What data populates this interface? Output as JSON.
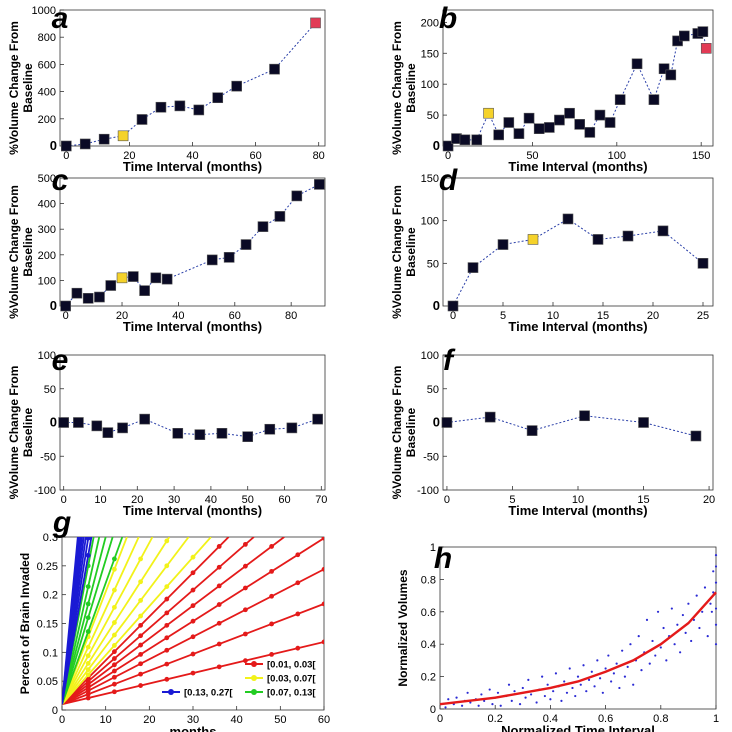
{
  "chart_data": [
    {
      "panel": "a",
      "type": "scatter",
      "xlabel": "Time Interval (months)",
      "ylabel": "%Volume Change From Baseline",
      "xlim": [
        -2,
        82
      ],
      "ylim": [
        0,
        1000
      ],
      "xticks": [
        0,
        20,
        40,
        60,
        80
      ],
      "yticks": [
        200,
        400,
        600,
        800,
        1000
      ],
      "zero_tick": "0",
      "x": [
        0,
        6,
        12,
        18,
        24,
        30,
        36,
        42,
        48,
        54,
        66,
        79
      ],
      "y": [
        0,
        15,
        50,
        75,
        195,
        285,
        295,
        265,
        355,
        440,
        565,
        905
      ],
      "highlights": {
        "3": "yellow",
        "11": "red"
      }
    },
    {
      "panel": "b",
      "type": "scatter",
      "xlabel": "Time Interval (months)",
      "ylabel": "%Volume Change From Baseline",
      "xlim": [
        -3,
        157
      ],
      "ylim": [
        0,
        220
      ],
      "xticks": [
        0,
        50,
        100,
        150
      ],
      "yticks": [
        50,
        100,
        150,
        200
      ],
      "zero_tick": "0",
      "x": [
        0,
        5,
        10,
        17,
        24,
        30,
        36,
        42,
        48,
        54,
        60,
        66,
        72,
        78,
        84,
        90,
        96,
        102,
        112,
        122,
        128,
        132,
        136,
        140,
        148,
        151,
        153
      ],
      "y": [
        0,
        12,
        10,
        10,
        53,
        18,
        38,
        20,
        45,
        28,
        30,
        42,
        53,
        35,
        22,
        50,
        38,
        75,
        133,
        75,
        125,
        115,
        170,
        178,
        182,
        185,
        158
      ],
      "highlights": {
        "4": "yellow",
        "26": "red"
      }
    },
    {
      "panel": "c",
      "type": "scatter",
      "xlabel": "Time Interval (months)",
      "ylabel": "%Volume Change From Baseline",
      "xlim": [
        -2,
        92
      ],
      "ylim": [
        0,
        500
      ],
      "xticks": [
        0,
        20,
        40,
        60,
        80
      ],
      "yticks": [
        100,
        200,
        300,
        400,
        500
      ],
      "zero_tick": "0",
      "x": [
        0,
        4,
        8,
        12,
        16,
        20,
        24,
        28,
        32,
        36,
        52,
        58,
        64,
        70,
        76,
        82,
        90
      ],
      "y": [
        0,
        50,
        30,
        35,
        80,
        110,
        115,
        60,
        110,
        105,
        180,
        190,
        240,
        310,
        350,
        430,
        475
      ],
      "highlights": {
        "5": "yellow"
      }
    },
    {
      "panel": "d",
      "type": "scatter",
      "xlabel": "Time Interval (months)",
      "ylabel": "%Volume Change From Baseline",
      "xlim": [
        -1,
        26
      ],
      "ylim": [
        0,
        150
      ],
      "xticks": [
        0,
        5,
        10,
        15,
        20,
        25
      ],
      "yticks": [
        50,
        100,
        150
      ],
      "zero_tick": "0",
      "x": [
        0,
        2,
        5,
        8,
        11.5,
        14.5,
        17.5,
        21,
        25
      ],
      "y": [
        0,
        45,
        72,
        78,
        102,
        78,
        82,
        88,
        50
      ],
      "highlights": {
        "3": "yellow"
      }
    },
    {
      "panel": "e",
      "type": "scatter",
      "xlabel": "Time Interval (months)",
      "ylabel": "%Volume Change From Baseline",
      "xlim": [
        -1,
        71
      ],
      "ylim": [
        -100,
        100
      ],
      "xticks": [
        0,
        10,
        20,
        30,
        40,
        50,
        60,
        70
      ],
      "yticks": [
        -100,
        -50,
        50,
        100
      ],
      "zero_tick": "0",
      "x": [
        0,
        4,
        9,
        12,
        16,
        22,
        31,
        37,
        43,
        50,
        56,
        62,
        69
      ],
      "y": [
        0,
        0,
        -5,
        -15,
        -8,
        5,
        -16,
        -18,
        -16,
        -21,
        -10,
        -8,
        5
      ],
      "highlights": {}
    },
    {
      "panel": "f",
      "type": "scatter",
      "xlabel": "Time Interval (months)",
      "ylabel": "%Volume Change From Baseline",
      "xlim": [
        -0.3,
        20.3
      ],
      "ylim": [
        -100,
        100
      ],
      "xticks": [
        0,
        5,
        10,
        15,
        20
      ],
      "yticks": [
        -100,
        -50,
        50,
        100
      ],
      "zero_tick": "0",
      "x": [
        0,
        3.3,
        6.5,
        10.5,
        15,
        19
      ],
      "y": [
        0,
        8,
        -12,
        10,
        0,
        -20
      ],
      "highlights": {}
    },
    {
      "panel": "g",
      "type": "line",
      "xlabel": "months",
      "ylabel": "Percent of Brain Invaded",
      "xlim": [
        0,
        60
      ],
      "ylim": [
        0,
        0.3
      ],
      "xticks": [
        0,
        10,
        20,
        30,
        40,
        50,
        60
      ],
      "yticks": [
        0,
        0.05,
        0.1,
        0.15,
        0.2,
        0.25,
        0.3
      ],
      "ytick_labels": [
        "0",
        "0.05",
        "0.1",
        "0.15",
        "0.2",
        "0.25",
        "0.3"
      ],
      "legend": [
        "[0.01, 0.03[",
        "[0.03, 0.07[",
        "[0.07, 0.13[",
        "[0.13, 0.27["
      ],
      "legend_position": "bottom-right",
      "series": [
        {
          "name": "[0.01, 0.03[",
          "color": "#e41a1a",
          "slopes": [
            0.0018,
            0.0029,
            0.0039,
            0.0048,
            0.0057,
            0.0066,
            0.0076
          ]
        },
        {
          "name": "[0.03, 0.07[",
          "color": "#f2f21a",
          "slopes": [
            0.0085,
            0.01,
            0.0118,
            0.014,
            0.0165,
            0.0195
          ]
        },
        {
          "name": "[0.07, 0.13[",
          "color": "#22cc22",
          "slopes": [
            0.021,
            0.025,
            0.029,
            0.034,
            0.04
          ]
        },
        {
          "name": "[0.13, 0.27[",
          "color": "#1a1ad4",
          "slopes": [
            0.043,
            0.048,
            0.053,
            0.058,
            0.063,
            0.068,
            0.074,
            0.08
          ]
        }
      ]
    },
    {
      "panel": "h",
      "type": "scatter",
      "xlabel": "Normalized Time Interval",
      "ylabel": "Normalized Volumes",
      "xlim": [
        0,
        1
      ],
      "ylim": [
        0,
        1
      ],
      "xticks": [
        0,
        0.2,
        0.4,
        0.6,
        0.8,
        1
      ],
      "yticks": [
        0,
        0.2,
        0.4,
        0.6,
        0.8,
        1
      ],
      "xtick_labels": [
        "0",
        "0.2",
        "0.4",
        "0.6",
        "0.8",
        "1"
      ],
      "ytick_labels": [
        "0",
        "0.2",
        "0.4",
        "0.6",
        "0.8",
        "1"
      ],
      "fit": {
        "color": "#e41a1a",
        "x": [
          0,
          0.1,
          0.2,
          0.3,
          0.4,
          0.5,
          0.6,
          0.7,
          0.8,
          0.9,
          1
        ],
        "y": [
          0.03,
          0.05,
          0.07,
          0.1,
          0.13,
          0.17,
          0.23,
          0.3,
          0.4,
          0.53,
          0.72
        ]
      },
      "point_color": "#2a2ad4",
      "points": [
        [
          0.02,
          0.01
        ],
        [
          0.03,
          0.06
        ],
        [
          0.05,
          0.03
        ],
        [
          0.06,
          0.07
        ],
        [
          0.08,
          0.02
        ],
        [
          0.09,
          0.05
        ],
        [
          0.1,
          0.1
        ],
        [
          0.11,
          0.04
        ],
        [
          0.13,
          0.06
        ],
        [
          0.14,
          0.02
        ],
        [
          0.15,
          0.09
        ],
        [
          0.16,
          0.05
        ],
        [
          0.18,
          0.12
        ],
        [
          0.19,
          0.03
        ],
        [
          0.2,
          0.07
        ],
        [
          0.21,
          0.1
        ],
        [
          0.22,
          0.02
        ],
        [
          0.24,
          0.08
        ],
        [
          0.25,
          0.15
        ],
        [
          0.26,
          0.05
        ],
        [
          0.27,
          0.11
        ],
        [
          0.29,
          0.03
        ],
        [
          0.3,
          0.13
        ],
        [
          0.31,
          0.07
        ],
        [
          0.32,
          0.18
        ],
        [
          0.33,
          0.09
        ],
        [
          0.35,
          0.04
        ],
        [
          0.36,
          0.12
        ],
        [
          0.37,
          0.2
        ],
        [
          0.38,
          0.08
        ],
        [
          0.39,
          0.15
        ],
        [
          0.4,
          0.06
        ],
        [
          0.41,
          0.11
        ],
        [
          0.42,
          0.22
        ],
        [
          0.43,
          0.14
        ],
        [
          0.44,
          0.05
        ],
        [
          0.45,
          0.17
        ],
        [
          0.46,
          0.1
        ],
        [
          0.47,
          0.25
        ],
        [
          0.48,
          0.13
        ],
        [
          0.49,
          0.08
        ],
        [
          0.5,
          0.2
        ],
        [
          0.51,
          0.15
        ],
        [
          0.52,
          0.27
        ],
        [
          0.53,
          0.11
        ],
        [
          0.54,
          0.18
        ],
        [
          0.55,
          0.23
        ],
        [
          0.56,
          0.14
        ],
        [
          0.57,
          0.3
        ],
        [
          0.58,
          0.19
        ],
        [
          0.59,
          0.1
        ],
        [
          0.6,
          0.25
        ],
        [
          0.61,
          0.33
        ],
        [
          0.62,
          0.17
        ],
        [
          0.63,
          0.22
        ],
        [
          0.64,
          0.28
        ],
        [
          0.65,
          0.13
        ],
        [
          0.66,
          0.36
        ],
        [
          0.67,
          0.2
        ],
        [
          0.68,
          0.26
        ],
        [
          0.69,
          0.4
        ],
        [
          0.7,
          0.15
        ],
        [
          0.71,
          0.3
        ],
        [
          0.72,
          0.45
        ],
        [
          0.73,
          0.24
        ],
        [
          0.74,
          0.35
        ],
        [
          0.75,
          0.55
        ],
        [
          0.76,
          0.28
        ],
        [
          0.77,
          0.42
        ],
        [
          0.78,
          0.33
        ],
        [
          0.79,
          0.6
        ],
        [
          0.8,
          0.38
        ],
        [
          0.81,
          0.5
        ],
        [
          0.82,
          0.3
        ],
        [
          0.83,
          0.45
        ],
        [
          0.84,
          0.62
        ],
        [
          0.85,
          0.4
        ],
        [
          0.86,
          0.52
        ],
        [
          0.87,
          0.35
        ],
        [
          0.88,
          0.58
        ],
        [
          0.89,
          0.47
        ],
        [
          0.9,
          0.65
        ],
        [
          0.91,
          0.42
        ],
        [
          0.92,
          0.55
        ],
        [
          0.93,
          0.7
        ],
        [
          0.94,
          0.5
        ],
        [
          0.95,
          0.6
        ],
        [
          0.96,
          0.75
        ],
        [
          0.97,
          0.45
        ],
        [
          0.98,
          0.65
        ],
        [
          0.99,
          0.85
        ],
        [
          1.0,
          0.95
        ],
        [
          1.0,
          0.88
        ],
        [
          1.0,
          0.78
        ],
        [
          1.0,
          0.62
        ],
        [
          1.0,
          0.52
        ],
        [
          1.0,
          0.4
        ],
        [
          0.99,
          0.72
        ],
        [
          0.985,
          0.6
        ]
      ]
    }
  ]
}
